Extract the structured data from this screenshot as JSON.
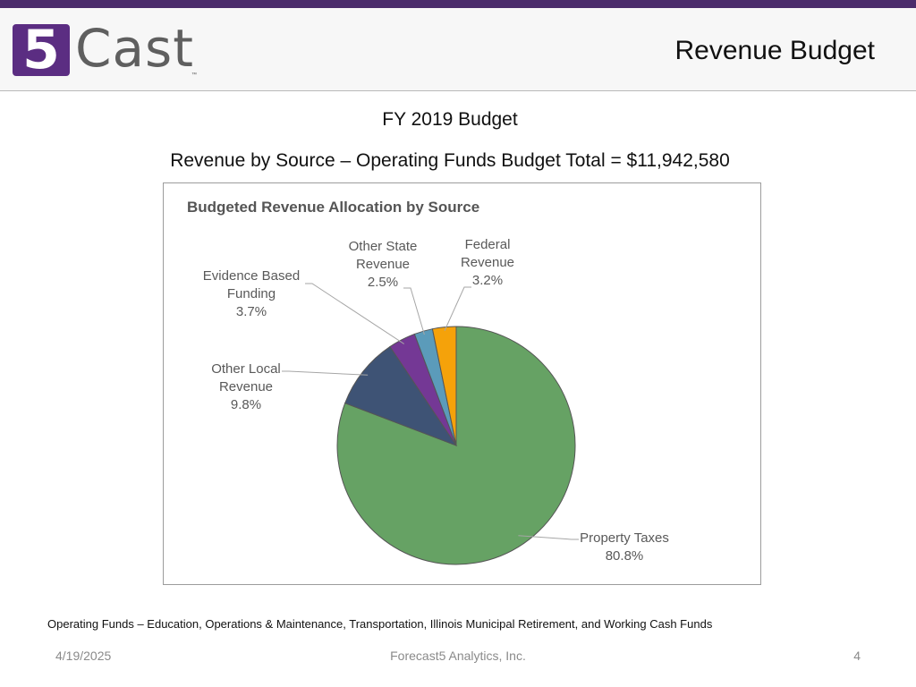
{
  "header": {
    "logo_mark": "5",
    "logo_text": "Cast",
    "logo_tm": "™",
    "title": "Revenue Budget"
  },
  "subtitle": "FY 2019 Budget",
  "budget_total_line": "Revenue by Source – Operating Funds Budget Total = $11,942,580",
  "chart_data": {
    "type": "pie",
    "title": "Budgeted Revenue Allocation by Source",
    "start_angle_deg": 0,
    "direction": "clockwise",
    "slices": [
      {
        "label_lines": [
          "Property Taxes"
        ],
        "value": 80.8,
        "value_label": "80.8%",
        "color": "#66a264"
      },
      {
        "label_lines": [
          "Other Local",
          "Revenue"
        ],
        "value": 9.8,
        "value_label": "9.8%",
        "color": "#3e5375"
      },
      {
        "label_lines": [
          "Evidence Based",
          "Funding"
        ],
        "value": 3.7,
        "value_label": "3.7%",
        "color": "#743895"
      },
      {
        "label_lines": [
          "Other State",
          "Revenue"
        ],
        "value": 2.5,
        "value_label": "2.5%",
        "color": "#5b9bba"
      },
      {
        "label_lines": [
          "Federal",
          "Revenue"
        ],
        "value": 3.2,
        "value_label": "3.2%",
        "color": "#f5a20a"
      }
    ]
  },
  "footnote": "Operating Funds – Education, Operations & Maintenance, Transportation, Illinois Municipal Retirement, and Working Cash Funds",
  "footer": {
    "date": "4/19/2025",
    "company": "Forecast5 Analytics, Inc.",
    "page": "4"
  }
}
